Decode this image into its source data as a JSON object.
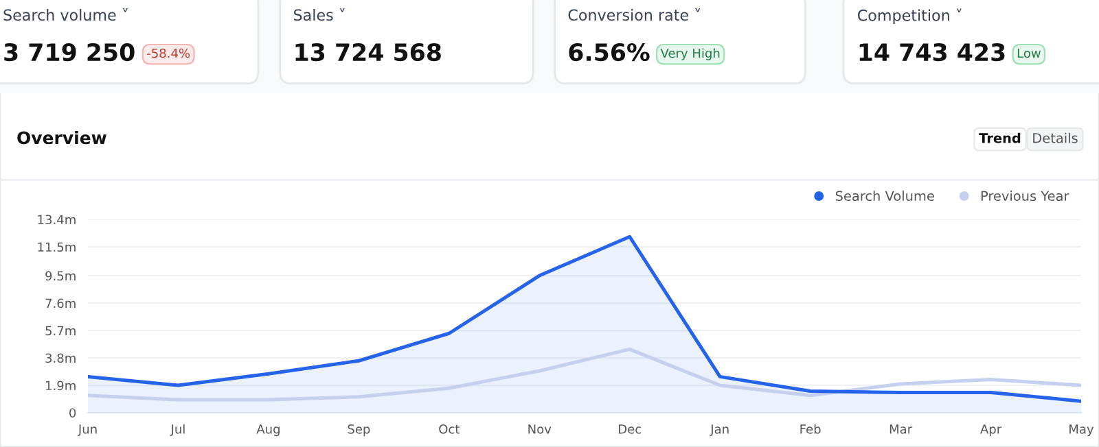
{
  "chart_data": [
    {
      "type": "other",
      "title": "Search volume ˅",
      "annotations": [
        "3 719 250",
        "-58.4%"
      ]
    },
    {
      "type": "other",
      "title": "Sales ˅",
      "annotations": [
        "13 724 568"
      ]
    },
    {
      "type": "other",
      "title": "Conversion rate ˅",
      "annotations": [
        "6.56%",
        "Very High"
      ]
    },
    {
      "type": "other",
      "title": "Competition ˅",
      "annotations": [
        "14 743 423",
        "Low"
      ]
    },
    {
      "type": "line",
      "title": "Overview",
      "annotations": [
        "Trend",
        "Details"
      ],
      "series": [
        {
          "name": "Search Volume",
          "type": "area",
          "color": "#2563eb",
          "values": [
            2.5,
            1.9,
            2.7,
            3.6,
            5.5,
            9.5,
            12.2,
            2.5,
            1.5,
            1.4,
            1.4,
            0.8
          ]
        },
        {
          "name": "Previous Year",
          "color": "#c5d0ef",
          "values": [
            1.2,
            0.9,
            0.9,
            1.1,
            1.7,
            2.9,
            4.4,
            1.9,
            1.2,
            2.0,
            2.3,
            1.9
          ]
        }
      ],
      "categories": [
        "Jun",
        "Jul",
        "Aug",
        "Sep",
        "Oct",
        "Nov",
        "Dec",
        "Jan",
        "Feb",
        "Mar",
        "Apr",
        "May"
      ],
      "ylim": [
        0,
        13.4
      ],
      "yticks": [
        0,
        {
          "value": 1.9,
          "label": "1.9m"
        },
        {
          "value": 3.8,
          "label": "3.8m"
        },
        {
          "value": 5.7,
          "label": "5.7m"
        },
        {
          "value": 7.6,
          "label": "7.6m"
        },
        {
          "value": 9.5,
          "label": "9.5m"
        },
        {
          "value": 11.5,
          "label": "11.5m"
        },
        {
          "value": 13.4,
          "label": "13.4m"
        }
      ],
      "grid": "y",
      "legend": "top right",
      "marker": "none",
      "line_style": "solid"
    }
  ]
}
